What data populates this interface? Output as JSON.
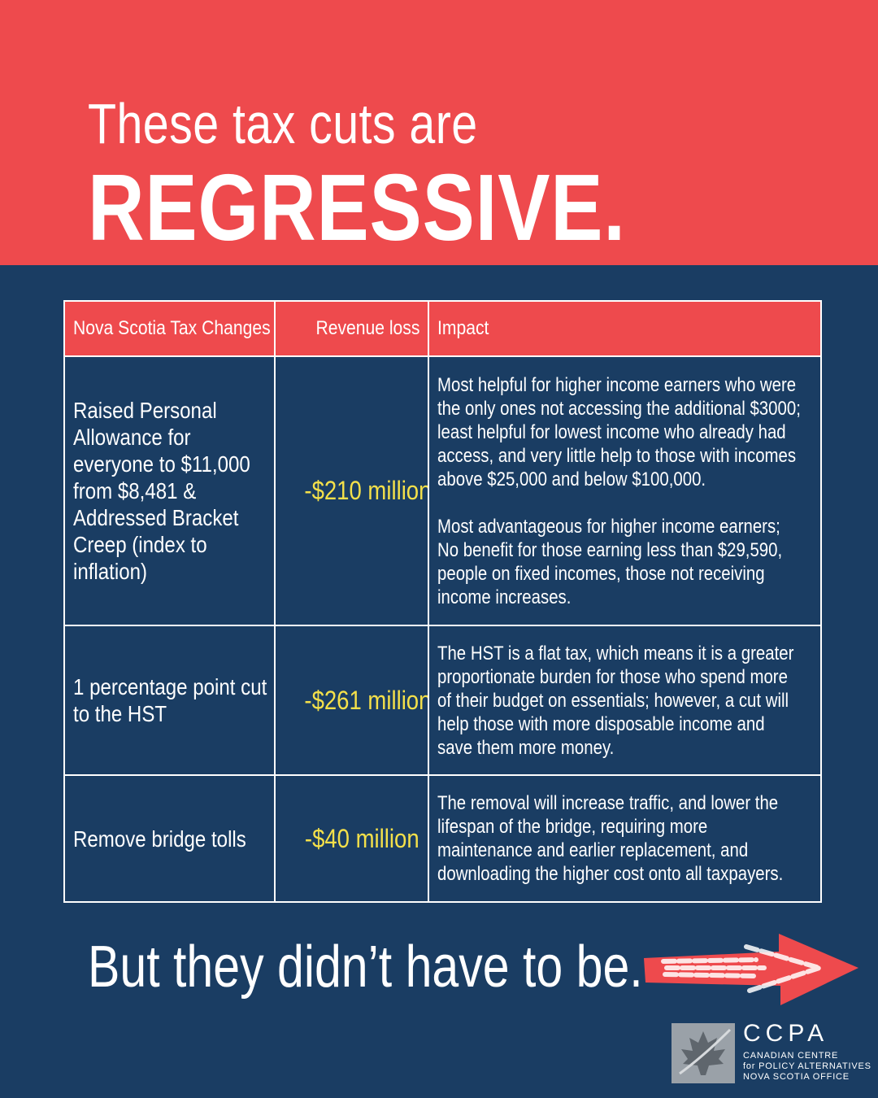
{
  "headline": {
    "line1": "These tax cuts are",
    "line2": "REGRESSIVE."
  },
  "table": {
    "headers": [
      "Nova Scotia Tax Changes",
      "Revenue loss",
      "Impact"
    ],
    "rows": [
      {
        "change": "Raised Personal Allowance for everyone to $11,000 from $8,481 & Addressed Bracket Creep (index to inflation)",
        "loss": "-$210 million",
        "impact": [
          "Most helpful for higher income earners who were the only ones not accessing the additional $3000; least helpful for lowest income who already had access, and very little help to those with incomes above $25,000 and below $100,000.",
          "Most advantageous for higher income earners; No benefit for those earning less than $29,590, people on fixed incomes, those not receiving income increases."
        ]
      },
      {
        "change": "1 percentage point cut to the HST",
        "loss": "-$261 million",
        "impact": [
          "The HST is a flat tax, which means it is a greater proportionate burden for those who spend more of their budget on essentials; however, a cut will help those with more disposable income and save them more money."
        ]
      },
      {
        "change": "Remove bridge tolls",
        "loss": "-$40 million",
        "impact": [
          "The removal will increase traffic, and lower the lifespan of the bridge, requiring more maintenance and earlier replacement, and downloading the higher cost onto all taxpayers."
        ]
      }
    ]
  },
  "footer": {
    "tagline": "But they didn’t have to be.",
    "arrow_icon": "arrow-right-icon"
  },
  "logo": {
    "name": "CCPA",
    "line1": "CANADIAN CENTRE",
    "line2": "for POLICY ALTERNATIVES",
    "line3": "NOVA SCOTIA OFFICE",
    "icon": "maple-leaf-icon"
  },
  "colors": {
    "header_red": "#ee4a4d",
    "navy": "#1a3d63",
    "loss_yellow": "#f4e04a",
    "white": "#ffffff"
  }
}
